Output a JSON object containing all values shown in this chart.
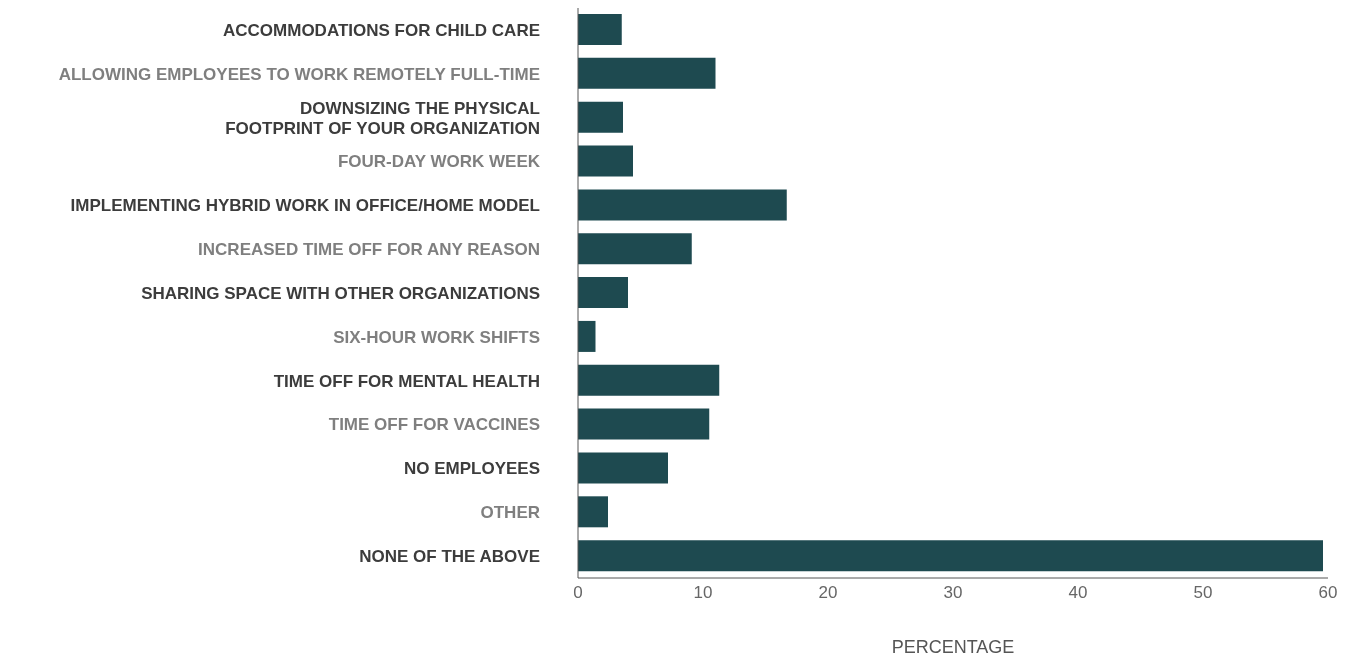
{
  "chart_data": {
    "type": "bar",
    "orientation": "horizontal",
    "xlabel": "PERCENTAGE",
    "categories": [
      "ACCOMMODATIONS FOR CHILD CARE",
      "ALLOWING EMPLOYEES TO WORK REMOTELY FULL-TIME",
      "DOWNSIZING THE PHYSICAL FOOTPRINT OF YOUR ORGANIZATION",
      "FOUR-DAY WORK WEEK",
      "IMPLEMENTING HYBRID WORK IN OFFICE/HOME MODEL",
      "INCREASED TIME OFF FOR ANY REASON",
      "SHARING SPACE WITH OTHER ORGANIZATIONS",
      "SIX-HOUR WORK SHIFTS",
      "TIME OFF FOR MENTAL HEALTH",
      "TIME OFF FOR VACCINES",
      "NO EMPLOYEES",
      "OTHER",
      "NONE OF THE ABOVE"
    ],
    "values": [
      3.5,
      11.0,
      3.6,
      4.4,
      16.7,
      9.1,
      4.0,
      1.4,
      11.3,
      10.5,
      7.2,
      2.4,
      59.6
    ],
    "color": "#1e4a50",
    "xlim": [
      0,
      60
    ],
    "xticks": [
      0,
      10,
      20,
      30,
      40,
      50,
      60
    ],
    "grid": false,
    "legend": false
  }
}
